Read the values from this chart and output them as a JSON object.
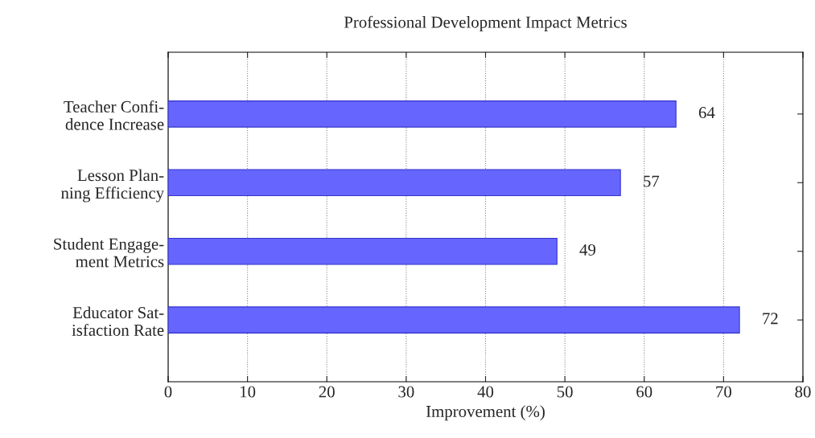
{
  "chart_data": {
    "type": "bar",
    "orientation": "horizontal",
    "title": "Professional Development Impact Metrics",
    "xlabel": "Improvement (%)",
    "categories": [
      "Teacher Confi-\ndence Increase",
      "Lesson Plan-\nning Efficiency",
      "Student Engage-\nment Metrics",
      "Educator Sat-\nisfaction Rate"
    ],
    "values": [
      64,
      57,
      49,
      72
    ],
    "color": "#6666ff",
    "xlim": [
      0,
      80
    ],
    "xticks": [
      0,
      10,
      20,
      30,
      40,
      50,
      60,
      70,
      80
    ],
    "grid": "x",
    "data_labels": true
  }
}
